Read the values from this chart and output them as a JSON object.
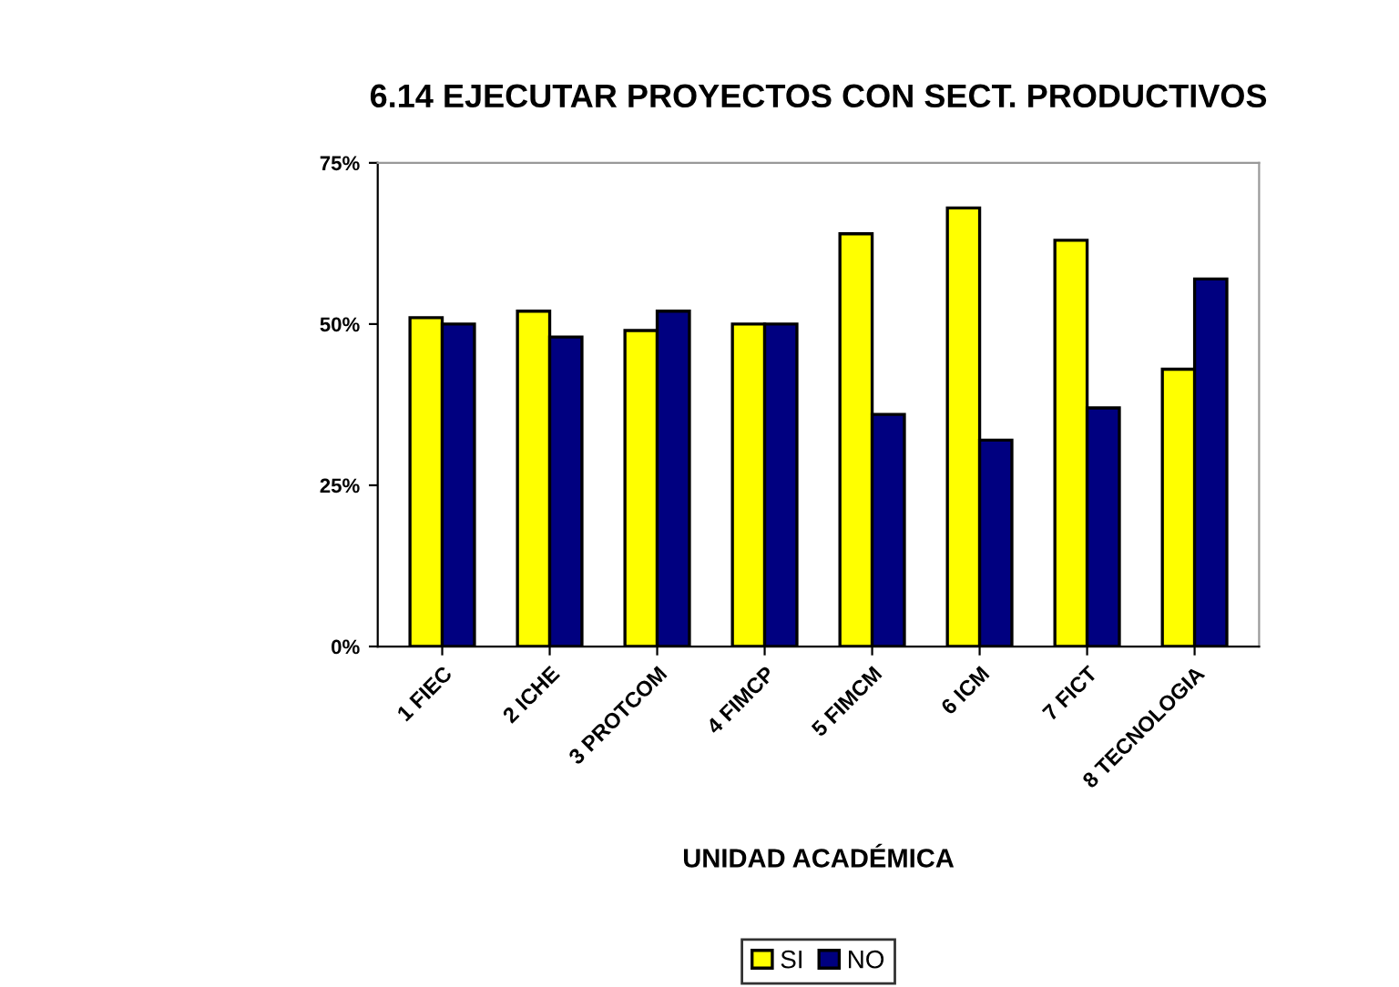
{
  "chart_data": {
    "type": "bar",
    "title": "6.14 EJECUTAR PROYECTOS CON SECT. PRODUCTIVOS",
    "xlabel": "UNIDAD ACADÉMICA",
    "categories": [
      "1 FIEC",
      "2 ICHE",
      "3 PROTCOM",
      "4 FIMCP",
      "5 FIMCM",
      "6 ICM",
      "7 FICT",
      "8 TECNOLOGIA"
    ],
    "series": [
      {
        "name": "SI",
        "color": "#ffff00",
        "values": [
          51,
          52,
          49,
          50,
          64,
          68,
          63,
          43
        ]
      },
      {
        "name": "NO",
        "color": "#000080",
        "values": [
          50,
          48,
          52,
          50,
          36,
          32,
          37,
          57
        ]
      }
    ],
    "ylim": [
      0,
      75
    ],
    "yticks": [
      {
        "value": 0,
        "label": "0%"
      },
      {
        "value": 25,
        "label": "25%"
      },
      {
        "value": 50,
        "label": "50%"
      },
      {
        "value": 75,
        "label": "75%"
      }
    ],
    "grid": false,
    "legend": "bottom"
  }
}
